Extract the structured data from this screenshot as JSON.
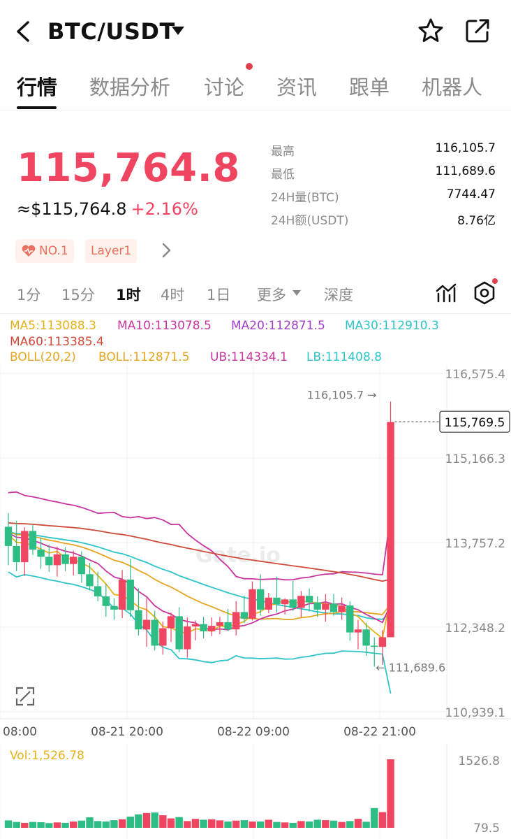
{
  "header": {
    "pair": "BTC/USDT",
    "back_icon": "chevron-left-icon",
    "favorite_icon": "star-icon",
    "share_icon": "share-icon"
  },
  "tabs": [
    {
      "label": "行情",
      "active": true
    },
    {
      "label": "数据分析",
      "active": false
    },
    {
      "label": "讨论",
      "active": false,
      "badge_dot": true
    },
    {
      "label": "资讯",
      "active": false
    },
    {
      "label": "跟单",
      "active": false
    },
    {
      "label": "机器人",
      "active": false
    }
  ],
  "ticker": {
    "last_price": "115,764.8",
    "usd_price": "≈$115,764.8",
    "change_pct": "+2.16%",
    "stats": [
      {
        "label": "最高",
        "value": "116,105.7"
      },
      {
        "label": "最低",
        "value": "111,689.6"
      },
      {
        "label": "24H量(BTC)",
        "value": "7744.47"
      },
      {
        "label": "24H额(USDT)",
        "value": "8.76亿"
      }
    ],
    "tags": [
      "NO.1",
      "Layer1"
    ]
  },
  "timeframes": {
    "items": [
      "1分",
      "15分",
      "1时",
      "4时",
      "1日",
      "更多",
      "深度"
    ],
    "active": "1时"
  },
  "indicators": {
    "ma5": "MA5:113088.3",
    "ma10": "MA10:113078.5",
    "ma20": "MA20:112871.5",
    "ma30": "MA30:112910.3",
    "ma60": "MA60:113385.4",
    "boll": "BOLL(20,2)",
    "boll_mid": "BOLL:112871.5",
    "boll_ub": "UB:114334.1",
    "boll_lb": "LB:111408.8"
  },
  "colors": {
    "up": "#ef4560",
    "down": "#2ebd85",
    "ma5": "#e6b21a",
    "ma10": "#c8359e",
    "ma20": "#a03ec7",
    "ma30": "#2ec4c8",
    "ma60": "#d04a3a",
    "boll_mid": "#e6a521",
    "boll_ub": "#c8359e",
    "boll_lb": "#2ec4c8"
  },
  "chart_data": {
    "type": "candlestick",
    "y_axis_labels": [
      "116,575.4",
      "115,166.3",
      "113,757.2",
      "112,348.2",
      "110,939.1"
    ],
    "y_axis_values": [
      116575.4,
      115166.3,
      113757.2,
      112348.2,
      110939.1
    ],
    "ylim": [
      110939.1,
      116575.4
    ],
    "x_axis_labels": [
      "08:00",
      "08-21 20:00",
      "08-22 09:00",
      "08-22 21:00"
    ],
    "current_price_label": "115,769.5",
    "current_price": 115769.5,
    "high_label": "116,105.7",
    "high": 116105.7,
    "low_label": "111,689.6",
    "low": 111689.6,
    "candles": [
      [
        114020,
        114250,
        113380,
        113700
      ],
      [
        113700,
        114120,
        113280,
        113430
      ],
      [
        113430,
        114010,
        113200,
        113950
      ],
      [
        113950,
        114050,
        113550,
        113640
      ],
      [
        113640,
        113840,
        113320,
        113520
      ],
      [
        113520,
        113720,
        113270,
        113380
      ],
      [
        113380,
        113690,
        113190,
        113560
      ],
      [
        113560,
        113680,
        113280,
        113400
      ],
      [
        113400,
        113620,
        113210,
        113520
      ],
      [
        113520,
        113610,
        113090,
        113230
      ],
      [
        113230,
        113420,
        112960,
        113030
      ],
      [
        113030,
        113270,
        112780,
        112860
      ],
      [
        112860,
        113070,
        112520,
        112700
      ],
      [
        112700,
        112830,
        112470,
        112640
      ],
      [
        112640,
        113300,
        112500,
        113140
      ],
      [
        113140,
        113490,
        112520,
        112630
      ],
      [
        112630,
        112990,
        112210,
        112310
      ],
      [
        112310,
        112830,
        112020,
        112470
      ],
      [
        112470,
        112620,
        111960,
        112040
      ],
      [
        112040,
        112440,
        111890,
        112330
      ],
      [
        112330,
        112590,
        112100,
        112530
      ],
      [
        112530,
        112680,
        111930,
        111980
      ],
      [
        111980,
        112510,
        111840,
        112360
      ],
      [
        112360,
        112460,
        112130,
        112400
      ],
      [
        112400,
        112520,
        112160,
        112280
      ],
      [
        112280,
        112510,
        112200,
        112370
      ],
      [
        112370,
        112520,
        112230,
        112430
      ],
      [
        112430,
        112650,
        112290,
        112310
      ],
      [
        112310,
        112780,
        112210,
        112600
      ],
      [
        112600,
        112870,
        112420,
        112490
      ],
      [
        112490,
        113110,
        112460,
        112980
      ],
      [
        112980,
        113230,
        112540,
        112640
      ],
      [
        112640,
        112920,
        112580,
        112840
      ],
      [
        112840,
        113190,
        112590,
        112730
      ],
      [
        112730,
        112830,
        112560,
        112810
      ],
      [
        112810,
        113120,
        112620,
        112670
      ],
      [
        112670,
        112950,
        112510,
        112870
      ],
      [
        112870,
        112990,
        112610,
        112760
      ],
      [
        112760,
        112860,
        112520,
        112640
      ],
      [
        112640,
        112900,
        112440,
        112740
      ],
      [
        112740,
        112900,
        112540,
        112600
      ],
      [
        112600,
        112840,
        112470,
        112710
      ],
      [
        112710,
        112780,
        112120,
        112260
      ],
      [
        112260,
        112470,
        111980,
        112310
      ],
      [
        112310,
        112420,
        111870,
        112040
      ],
      [
        112040,
        112180,
        111689.6,
        112020
      ],
      [
        112020,
        112300,
        111720,
        112180
      ],
      [
        112180,
        116105.7,
        112180,
        115764.8
      ]
    ],
    "volume_axis_labels": [
      "1526.8",
      "79.5"
    ],
    "volume_label": "Vol:1,526.78",
    "volumes": [
      165,
      130,
      110,
      130,
      125,
      105,
      120,
      110,
      140,
      160,
      235,
      150,
      140,
      170,
      190,
      250,
      300,
      330,
      340,
      280,
      210,
      240,
      150,
      200,
      180,
      190,
      165,
      140,
      160,
      170,
      140,
      140,
      180,
      130,
      120,
      110,
      150,
      140,
      180,
      170,
      160,
      130,
      150,
      200,
      135,
      440,
      350,
      1526.78
    ]
  }
}
